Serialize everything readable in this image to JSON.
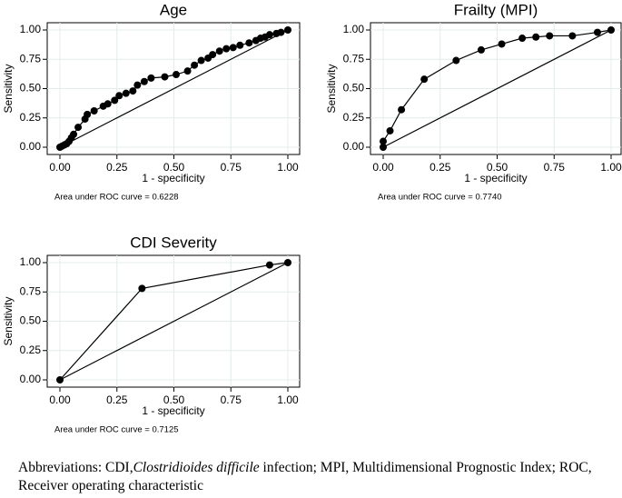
{
  "chart_data": [
    {
      "type": "line",
      "title": "Age",
      "xlabel": "1 - specificity",
      "ylabel": "Sensitivity",
      "annotation": "Area under ROC curve = 0.6228",
      "xlim": [
        0,
        1
      ],
      "ylim": [
        0,
        1
      ],
      "grid": true,
      "xticks": [
        {
          "value": 0,
          "label": "0.00"
        },
        {
          "value": 0.25,
          "label": "0.25"
        },
        {
          "value": 0.5,
          "label": "0.50"
        },
        {
          "value": 0.75,
          "label": "0.75"
        },
        {
          "value": 1,
          "label": "1.00"
        }
      ],
      "yticks": [
        {
          "value": 0,
          "label": "0.00"
        },
        {
          "value": 0.25,
          "label": "0.25"
        },
        {
          "value": 0.5,
          "label": "0.50"
        },
        {
          "value": 0.75,
          "label": "0.75"
        },
        {
          "value": 1,
          "label": "1.00"
        }
      ],
      "series": [
        {
          "color": "#000000",
          "markers": true,
          "x": [
            0,
            0.01,
            0.02,
            0.03,
            0.04,
            0.05,
            0.06,
            0.08,
            0.11,
            0.12,
            0.15,
            0.19,
            0.21,
            0.24,
            0.26,
            0.29,
            0.32,
            0.34,
            0.37,
            0.4,
            0.46,
            0.51,
            0.56,
            0.59,
            0.62,
            0.65,
            0.67,
            0.7,
            0.73,
            0.76,
            0.79,
            0.83,
            0.86,
            0.88,
            0.9,
            0.92,
            0.95,
            0.97,
            1.0
          ],
          "values": [
            0,
            0.01,
            0.02,
            0.03,
            0.05,
            0.08,
            0.11,
            0.17,
            0.24,
            0.28,
            0.31,
            0.35,
            0.37,
            0.4,
            0.44,
            0.46,
            0.48,
            0.53,
            0.56,
            0.59,
            0.6,
            0.62,
            0.65,
            0.7,
            0.74,
            0.76,
            0.79,
            0.82,
            0.84,
            0.85,
            0.87,
            0.89,
            0.91,
            0.93,
            0.94,
            0.96,
            0.97,
            0.98,
            1.0
          ]
        },
        {
          "color": "#000000",
          "markers": false,
          "x": [
            0,
            1
          ],
          "values": [
            0,
            1
          ]
        }
      ]
    },
    {
      "type": "line",
      "title": "Frailty (MPI)",
      "xlabel": "1 - specificity",
      "ylabel": "Sensitivity",
      "annotation": "Area under ROC curve = 0.7740",
      "xlim": [
        0,
        1
      ],
      "ylim": [
        0,
        1
      ],
      "grid": true,
      "xticks": [
        {
          "value": 0,
          "label": "0.00"
        },
        {
          "value": 0.25,
          "label": "0.25"
        },
        {
          "value": 0.5,
          "label": "0.50"
        },
        {
          "value": 0.75,
          "label": "0.75"
        },
        {
          "value": 1,
          "label": "1.00"
        }
      ],
      "yticks": [
        {
          "value": 0,
          "label": "0.00"
        },
        {
          "value": 0.25,
          "label": "0.25"
        },
        {
          "value": 0.5,
          "label": "0.50"
        },
        {
          "value": 0.75,
          "label": "0.75"
        },
        {
          "value": 1,
          "label": "1.00"
        }
      ],
      "series": [
        {
          "color": "#000000",
          "markers": true,
          "x": [
            0,
            0,
            0.03,
            0.08,
            0.18,
            0.32,
            0.43,
            0.52,
            0.61,
            0.67,
            0.73,
            0.83,
            0.94,
            1.0
          ],
          "values": [
            0,
            0.05,
            0.14,
            0.32,
            0.58,
            0.74,
            0.83,
            0.88,
            0.93,
            0.94,
            0.95,
            0.95,
            0.98,
            1.0
          ]
        },
        {
          "color": "#000000",
          "markers": false,
          "x": [
            0,
            1
          ],
          "values": [
            0,
            1
          ]
        }
      ]
    },
    {
      "type": "line",
      "title": "CDI Severity",
      "xlabel": "1 - specificity",
      "ylabel": "Sensitivity",
      "annotation": "Area under ROC curve = 0.7125",
      "xlim": [
        0,
        1
      ],
      "ylim": [
        0,
        1
      ],
      "grid": true,
      "xticks": [
        {
          "value": 0,
          "label": "0.00"
        },
        {
          "value": 0.25,
          "label": "0.25"
        },
        {
          "value": 0.5,
          "label": "0.50"
        },
        {
          "value": 0.75,
          "label": "0.75"
        },
        {
          "value": 1,
          "label": "1.00"
        }
      ],
      "yticks": [
        {
          "value": 0,
          "label": "0.00"
        },
        {
          "value": 0.25,
          "label": "0.25"
        },
        {
          "value": 0.5,
          "label": "0.50"
        },
        {
          "value": 0.75,
          "label": "0.75"
        },
        {
          "value": 1,
          "label": "1.00"
        }
      ],
      "series": [
        {
          "color": "#000000",
          "markers": true,
          "x": [
            0,
            0.36,
            0.92,
            1.0
          ],
          "values": [
            0,
            0.78,
            0.98,
            1.0
          ]
        },
        {
          "color": "#000000",
          "markers": false,
          "x": [
            0,
            1
          ],
          "values": [
            0,
            1
          ]
        }
      ]
    }
  ],
  "caption": [
    "Abbreviations: CDI,",
    "Clostridioides difficile",
    " infection; MPI, Multidimensional Prognostic Index; ROC, Receiver operating characteristic"
  ]
}
